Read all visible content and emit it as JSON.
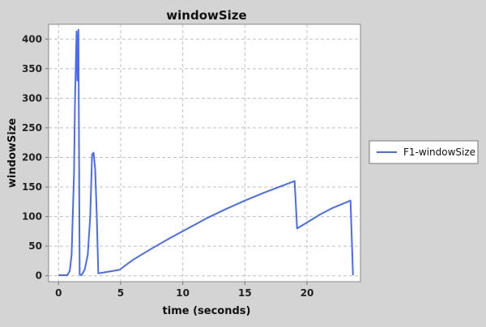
{
  "chart_data": {
    "type": "line",
    "title": "windowSize",
    "xlabel": "time (seconds)",
    "ylabel": "windowSize",
    "xlim": [
      -0.8,
      24.3
    ],
    "ylim": [
      -10,
      425
    ],
    "xticks": [
      0,
      5,
      10,
      15,
      20
    ],
    "yticks": [
      0,
      50,
      100,
      150,
      200,
      250,
      300,
      350,
      400
    ],
    "grid": true,
    "legend_position": "right",
    "colors": {
      "background": "#d4d4d4",
      "plot_background": "#ffffff",
      "grid": "#c0c0c0",
      "series": "#4a6cf0"
    },
    "series": [
      {
        "name": "F1-windowSize",
        "x": [
          0.0,
          0.4,
          0.7,
          0.9,
          1.05,
          1.25,
          1.32,
          1.45,
          1.52,
          1.6,
          1.7,
          1.85,
          2.1,
          2.35,
          2.55,
          2.7,
          2.82,
          2.95,
          3.08,
          3.2,
          4.9,
          6.0,
          7.5,
          9.0,
          10.5,
          12.0,
          13.5,
          15.0,
          16.5,
          18.0,
          19.0,
          19.2,
          20.0,
          21.0,
          22.0,
          23.5,
          23.7
        ],
        "y": [
          1,
          1,
          1,
          8,
          35,
          175,
          290,
          413,
          330,
          416,
          2,
          1,
          10,
          35,
          100,
          205,
          208,
          180,
          100,
          4,
          10,
          27,
          46,
          64,
          81,
          98,
          113,
          127,
          140,
          152,
          160,
          80,
          90,
          103,
          114,
          127,
          1
        ]
      }
    ]
  }
}
